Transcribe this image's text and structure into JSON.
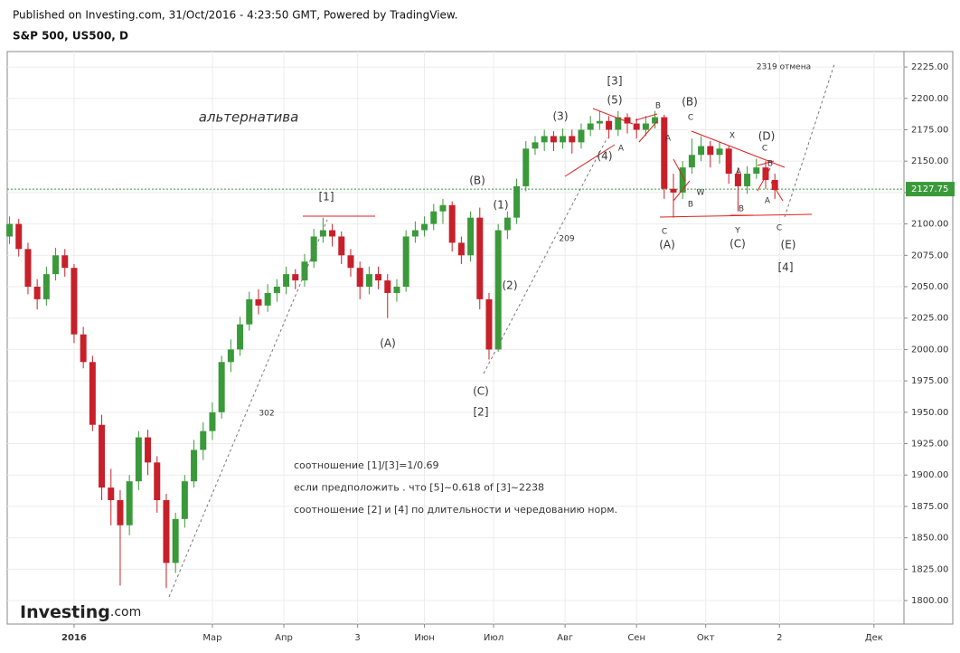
{
  "header": {
    "published": "Published on Investing.com, 31/Oct/2016 - 4:23:50 GMT, Powered by TradingView.",
    "symbol": "S&P 500, US500, D"
  },
  "logo": {
    "name": "Investing",
    "suffix": ".com"
  },
  "chart_data": {
    "type": "candlestick",
    "x": [
      -28,
      -24,
      -20,
      -16,
      -12,
      -8,
      -4,
      0,
      4,
      8,
      12,
      16,
      20,
      24,
      28,
      32,
      36,
      40,
      44,
      48,
      52,
      56,
      60,
      64,
      68,
      72,
      76,
      80,
      84,
      88,
      92,
      96,
      100,
      104,
      108,
      112,
      116,
      120,
      124,
      128,
      132,
      136,
      140,
      144,
      148,
      152,
      156,
      160,
      164,
      168,
      172,
      176,
      180,
      184,
      188,
      192,
      196,
      200,
      204,
      208,
      212,
      216,
      220,
      224,
      228,
      232,
      236,
      240,
      244,
      248,
      252,
      256,
      260,
      264,
      268,
      272,
      276,
      280,
      284,
      288,
      292,
      296,
      300,
      304
    ],
    "open": [
      2090,
      2100,
      2080,
      2050,
      2040,
      2060,
      2075,
      2065,
      2012,
      1990,
      1940,
      1890,
      1880,
      1860,
      1895,
      1930,
      1910,
      1880,
      1830,
      1865,
      1895,
      1920,
      1935,
      1950,
      1990,
      2000,
      2020,
      2040,
      2035,
      2045,
      2050,
      2060,
      2055,
      2070,
      2090,
      2095,
      2090,
      2075,
      2065,
      2050,
      2060,
      2055,
      2045,
      2050,
      2090,
      2095,
      2100,
      2110,
      2115,
      2085,
      2075,
      2105,
      2040,
      2000,
      2095,
      2105,
      2130,
      2160,
      2165,
      2170,
      2165,
      2170,
      2165,
      2175,
      2180,
      2182,
      2175,
      2185,
      2180,
      2175,
      2180,
      2185,
      2128,
      2125,
      2145,
      2155,
      2162,
      2155,
      2160,
      2140,
      2130,
      2140,
      2145,
      2135
    ],
    "high": [
      2106,
      2104,
      2085,
      2056,
      2066,
      2081,
      2080,
      2068,
      2018,
      1995,
      1948,
      1905,
      1888,
      1900,
      1935,
      1936,
      1915,
      1885,
      1870,
      1900,
      1928,
      1942,
      1958,
      1995,
      2008,
      2026,
      2046,
      2048,
      2052,
      2056,
      2066,
      2064,
      2076,
      2096,
      2105,
      2100,
      2094,
      2080,
      2070,
      2066,
      2066,
      2060,
      2056,
      2095,
      2102,
      2106,
      2116,
      2120,
      2118,
      2090,
      2110,
      2113,
      2045,
      2100,
      2110,
      2136,
      2166,
      2170,
      2175,
      2174,
      2176,
      2175,
      2180,
      2186,
      2190,
      2186,
      2190,
      2188,
      2184,
      2186,
      2190,
      2187,
      2140,
      2150,
      2168,
      2170,
      2166,
      2165,
      2162,
      2145,
      2146,
      2152,
      2150,
      2140
    ],
    "low": [
      2084,
      2074,
      2044,
      2032,
      2035,
      2055,
      2058,
      2005,
      1985,
      1935,
      1880,
      1860,
      1812,
      1852,
      1888,
      1900,
      1870,
      1810,
      1822,
      1858,
      1890,
      1912,
      1928,
      1945,
      1982,
      1995,
      2015,
      2028,
      2030,
      2038,
      2044,
      2048,
      2050,
      2065,
      2085,
      2082,
      2068,
      2058,
      2040,
      2044,
      2048,
      2025,
      2038,
      2046,
      2085,
      2090,
      2095,
      2100,
      2078,
      2068,
      2070,
      2032,
      1992,
      1998,
      2088,
      2100,
      2126,
      2155,
      2158,
      2158,
      2160,
      2156,
      2160,
      2170,
      2175,
      2168,
      2170,
      2172,
      2168,
      2170,
      2176,
      2120,
      2105,
      2120,
      2140,
      2150,
      2145,
      2148,
      2132,
      2110,
      2124,
      2136,
      2128,
      2120
    ],
    "close": [
      2100,
      2080,
      2050,
      2040,
      2060,
      2075,
      2065,
      2012,
      1990,
      1940,
      1890,
      1880,
      1860,
      1895,
      1930,
      1910,
      1880,
      1830,
      1865,
      1895,
      1920,
      1935,
      1950,
      1990,
      2000,
      2020,
      2040,
      2035,
      2045,
      2050,
      2060,
      2055,
      2070,
      2090,
      2095,
      2090,
      2075,
      2065,
      2050,
      2060,
      2055,
      2045,
      2050,
      2090,
      2095,
      2100,
      2110,
      2115,
      2085,
      2075,
      2105,
      2040,
      2000,
      2095,
      2105,
      2130,
      2160,
      2165,
      2170,
      2165,
      2170,
      2165,
      2175,
      2180,
      2182,
      2175,
      2185,
      2180,
      2175,
      2180,
      2185,
      2128,
      2125,
      2145,
      2155,
      2162,
      2155,
      2160,
      2140,
      2130,
      2140,
      2145,
      2135,
      2127
    ],
    "up_color": "#3a9a3a",
    "down_color": "#c8202a",
    "xlim": [
      -29,
      360
    ],
    "xticks": [
      {
        "value": 0,
        "label": "2016"
      },
      {
        "value": 60,
        "label": "Мар"
      },
      {
        "value": 91,
        "label": "Апр"
      },
      {
        "value": 123,
        "label": "3"
      },
      {
        "value": 152,
        "label": "Июн"
      },
      {
        "value": 182,
        "label": "Июл"
      },
      {
        "value": 213,
        "label": "Авг"
      },
      {
        "value": 244,
        "label": "Сен"
      },
      {
        "value": 274,
        "label": "Окт"
      },
      {
        "value": 306,
        "label": "2"
      },
      {
        "value": 347,
        "label": "Дек"
      }
    ],
    "ylim": [
      1781.3,
      2237.3
    ],
    "yticks": [
      {
        "value": 1800,
        "label": "1800.00"
      },
      {
        "value": 1825,
        "label": "1825.00"
      },
      {
        "value": 1850,
        "label": "1850.00"
      },
      {
        "value": 1875,
        "label": "1875.00"
      },
      {
        "value": 1900,
        "label": "1900.00"
      },
      {
        "value": 1925,
        "label": "1925.00"
      },
      {
        "value": 1950,
        "label": "1950.00"
      },
      {
        "value": 1975,
        "label": "1975.00"
      },
      {
        "value": 2000,
        "label": "2000.00"
      },
      {
        "value": 2025,
        "label": "2025.00"
      },
      {
        "value": 2050,
        "label": "2050.00"
      },
      {
        "value": 2075,
        "label": "2075.00"
      },
      {
        "value": 2100,
        "label": "2100.00"
      },
      {
        "value": 2125,
        "label": "2125.00"
      },
      {
        "value": 2150,
        "label": "2150.00"
      },
      {
        "value": 2175,
        "label": "2175.00"
      },
      {
        "value": 2200,
        "label": "2200.00"
      },
      {
        "value": 2225,
        "label": "2225.00"
      }
    ],
    "grid": true,
    "last_price": {
      "value": 2127.75,
      "label": "2127.75",
      "color": "#3a9a3a"
    },
    "annotations": [
      "альтернатива",
      "[1]",
      "(A)",
      "(B)",
      "(1)",
      "(2)",
      "(C)",
      "[2]",
      "(3)",
      "[3]",
      "(5)",
      "(4)",
      "A",
      "B",
      "(B)",
      "C",
      "A",
      "B",
      "W",
      "X",
      "C",
      "(A)",
      "Y",
      "(C)",
      "B",
      "(D)",
      "C",
      "A",
      "B",
      "A",
      "C",
      "(E)",
      "[4]",
      "209",
      "302",
      "2319 отмена"
    ],
    "notes": [
      "соотношение [1]/[3]=1/0.69",
      "если предположить . что [5]~0.618 of [3]~2238",
      "соотношение [2] и  [4] по  длительности и чередованию норм."
    ]
  }
}
